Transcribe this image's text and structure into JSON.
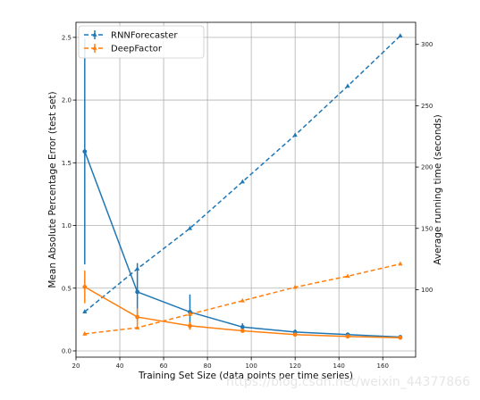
{
  "chart_data": {
    "type": "line",
    "xlabel": "Training Set Size (data points per time series)",
    "ylabel_left": "Mean Absolute Percentage Error (test set)",
    "ylabel_right": "Average running time (seconds)",
    "xlim": [
      20,
      175
    ],
    "ylim_left": [
      -0.05,
      2.62
    ],
    "ylim_right": [
      45,
      318
    ],
    "x_ticks": [
      20,
      40,
      60,
      80,
      100,
      120,
      140,
      160
    ],
    "y_left_ticks": [
      0.0,
      0.5,
      1.0,
      1.5,
      2.0,
      2.5
    ],
    "y_left_tick_labels": [
      "0.0",
      "0.5",
      "1.0",
      "1.5",
      "2.0",
      "2.5"
    ],
    "y_right_ticks": [
      100,
      150,
      200,
      250,
      300
    ],
    "grid": true,
    "legend_position": "top-left",
    "x": [
      24,
      48,
      72,
      96,
      120,
      144,
      168
    ],
    "series": [
      {
        "name": "RNNForecaster",
        "color": "#1f77b4",
        "error_values": [
          1.59,
          0.47,
          0.31,
          0.19,
          0.15,
          0.13,
          0.11
        ],
        "error_bars": [
          0.9,
          0.23,
          0.14,
          0.03,
          0.02,
          0.015,
          0.01
        ],
        "runtime_values": [
          82,
          117,
          150,
          188,
          226,
          266,
          307
        ]
      },
      {
        "name": "DeepFactor",
        "color": "#ff7f0e",
        "error_values": [
          0.51,
          0.27,
          0.2,
          0.16,
          0.13,
          0.115,
          0.105
        ],
        "error_bars": [
          0.13,
          0.07,
          0.03,
          0.015,
          0.015,
          0.01,
          0.01
        ],
        "runtime_values": [
          64,
          69,
          80,
          91,
          102,
          111,
          121
        ]
      }
    ]
  },
  "watermark": "https://blog.csdn.net/weixin_44377866"
}
